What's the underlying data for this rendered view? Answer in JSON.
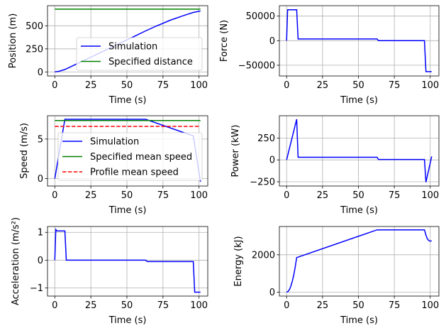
{
  "chart_data": [
    {
      "type": "line",
      "id": "position",
      "xlabel": "Time (s)",
      "ylabel": "Position (m)",
      "xlim": [
        -5.05,
        106.05
      ],
      "ylim": [
        -44,
        718
      ],
      "xticks": [
        0,
        25,
        50,
        75,
        100
      ],
      "xtick_labels": [
        "0",
        "25",
        "50",
        "75",
        "100"
      ],
      "yticks": [
        0,
        250,
        500
      ],
      "ytick_labels": [
        "0",
        "250",
        "500"
      ],
      "grid": true,
      "legend_placement": "lower-right",
      "series": [
        {
          "name": "Simulation",
          "color": "#0000ff",
          "style": "solid",
          "x": [
            0,
            3,
            7,
            15,
            25,
            35,
            45,
            55,
            63,
            70,
            80,
            90,
            96,
            101
          ],
          "y": [
            0,
            7,
            26,
            85,
            160,
            235,
            310,
            385,
            445,
            495,
            560,
            615,
            645,
            660
          ]
        },
        {
          "name": "Specified distance",
          "color": "#008000",
          "style": "solid",
          "x": [
            0,
            101
          ],
          "y": [
            680,
            680
          ]
        }
      ]
    },
    {
      "type": "line",
      "id": "force",
      "xlabel": "Time (s)",
      "ylabel": "Force (N)",
      "xlim": [
        -5.05,
        106.05
      ],
      "ylim": [
        -71800,
        71200
      ],
      "xticks": [
        0,
        25,
        50,
        75,
        100
      ],
      "xtick_labels": [
        "0",
        "25",
        "50",
        "75",
        "100"
      ],
      "yticks": [
        -50000,
        0,
        50000
      ],
      "ytick_labels": [
        "−50000",
        "0",
        "50000"
      ],
      "grid": true,
      "series": [
        {
          "name": "Simulation",
          "color": "#0000ff",
          "style": "solid",
          "x": [
            0,
            0.7,
            7,
            8,
            63,
            64,
            96,
            97,
            101
          ],
          "y": [
            0,
            63000,
            63000,
            3500,
            3500,
            0,
            0,
            -63000,
            -63000
          ]
        }
      ]
    },
    {
      "type": "line",
      "id": "speed",
      "xlabel": "Time (s)",
      "ylabel": "Speed (m/s)",
      "xlim": [
        -5.05,
        106.05
      ],
      "ylim": [
        -0.94,
        7.95
      ],
      "xticks": [
        0,
        25,
        50,
        75,
        100
      ],
      "xtick_labels": [
        "0",
        "25",
        "50",
        "75",
        "100"
      ],
      "yticks": [
        0,
        5
      ],
      "ytick_labels": [
        "0",
        "5"
      ],
      "grid": true,
      "legend_placement": "center",
      "series": [
        {
          "name": "Simulation",
          "color": "#0000ff",
          "style": "solid",
          "x": [
            0,
            7,
            63,
            96,
            101
          ],
          "y": [
            0,
            7.5,
            7.5,
            5.4,
            -0.4
          ]
        },
        {
          "name": "Specified mean speed",
          "color": "#008000",
          "style": "solid",
          "x": [
            0,
            101
          ],
          "y": [
            7.35,
            7.35
          ]
        },
        {
          "name": "Profile mean speed",
          "color": "#ff0000",
          "style": "dashed",
          "x": [
            0,
            101
          ],
          "y": [
            6.6,
            6.6
          ]
        }
      ]
    },
    {
      "type": "line",
      "id": "power",
      "xlabel": "Time (s)",
      "ylabel": "Power (kW)",
      "xlim": [
        -5.05,
        106.05
      ],
      "ylim": [
        -299,
        505
      ],
      "xticks": [
        0,
        25,
        50,
        75,
        100
      ],
      "xtick_labels": [
        "0",
        "25",
        "50",
        "75",
        "100"
      ],
      "yticks": [
        -250,
        0,
        250
      ],
      "ytick_labels": [
        "−250",
        "0",
        "250"
      ],
      "grid": true,
      "series": [
        {
          "name": "Simulation",
          "color": "#0000ff",
          "style": "solid",
          "x": [
            0,
            7,
            8,
            63,
            64,
            96,
            97,
            101
          ],
          "y": [
            0,
            465,
            30,
            30,
            5,
            5,
            -255,
            40
          ]
        }
      ]
    },
    {
      "type": "line",
      "id": "acceleration",
      "xlabel": "Time (s)",
      "ylabel": "Acceleration (m/s²)",
      "xlim": [
        -5.05,
        106.05
      ],
      "ylim": [
        -1.29,
        1.21
      ],
      "xticks": [
        0,
        25,
        50,
        75,
        100
      ],
      "xtick_labels": [
        "0",
        "25",
        "50",
        "75",
        "100"
      ],
      "yticks": [
        -1,
        0,
        1
      ],
      "ytick_labels": [
        "−1",
        "0",
        "1"
      ],
      "grid": true,
      "series": [
        {
          "name": "Simulation",
          "color": "#0000ff",
          "style": "solid",
          "x": [
            0,
            0.7,
            1.5,
            7,
            8,
            63,
            64,
            96,
            97,
            101
          ],
          "y": [
            0,
            1.1,
            1.05,
            1.05,
            0,
            0,
            -0.05,
            -0.05,
            -1.15,
            -1.15
          ]
        }
      ]
    },
    {
      "type": "line",
      "id": "energy",
      "xlabel": "Time (s)",
      "ylabel": "Energy (kJ)",
      "xlim": [
        -5.05,
        106.05
      ],
      "ylim": [
        -205,
        3510
      ],
      "xticks": [
        0,
        25,
        50,
        75,
        100
      ],
      "xtick_labels": [
        "0",
        "25",
        "50",
        "75",
        "100"
      ],
      "yticks": [
        0,
        2000
      ],
      "ytick_labels": [
        "0",
        "2000"
      ],
      "grid": true,
      "series": [
        {
          "name": "Simulation",
          "color": "#0000ff",
          "style": "solid",
          "x": [
            0,
            1,
            2,
            3,
            4,
            5,
            6,
            7,
            63,
            96,
            97,
            98,
            99,
            100,
            101
          ],
          "y": [
            0,
            40,
            150,
            340,
            600,
            940,
            1360,
            1850,
            3330,
            3330,
            3050,
            2850,
            2760,
            2730,
            2740
          ]
        }
      ]
    }
  ]
}
